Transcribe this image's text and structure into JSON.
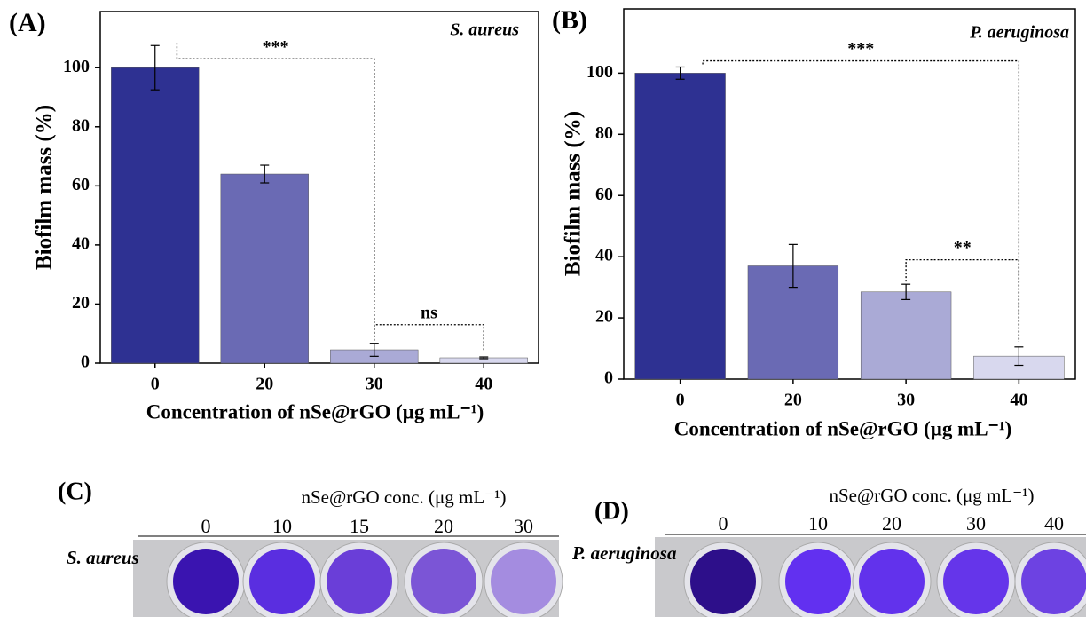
{
  "chart_data": [
    {
      "type": "bar",
      "title": "(A)",
      "annotations": [
        "S. aureus",
        "***",
        "ns"
      ],
      "x_label": "Concentration of nSe@rGO (μg mL⁻¹)",
      "y_label": "Biofilm mass (%)",
      "categories": [
        "0",
        "20",
        "30",
        "40"
      ],
      "values": [
        100,
        64,
        4.5,
        1.8
      ],
      "errors": [
        7.5,
        3,
        2.2,
        0.3
      ],
      "colors": [
        "#2e3192",
        "#6a6ab4",
        "#aaaad6",
        "#d8d8ee"
      ],
      "ylim": [
        0,
        119
      ],
      "yticks": [
        0,
        20,
        40,
        60,
        80,
        100
      ]
    },
    {
      "type": "bar",
      "title": "(B)",
      "annotations": [
        "P. aeruginosa",
        "***",
        "**"
      ],
      "x_label": "Concentration of nSe@rGO (μg mL⁻¹)",
      "y_label": "Biofilm mass (%)",
      "categories": [
        "0",
        "20",
        "30",
        "40"
      ],
      "values": [
        100,
        37,
        28.5,
        7.5
      ],
      "errors": [
        2,
        7,
        2.5,
        3
      ],
      "colors": [
        "#2e3192",
        "#6a6ab4",
        "#aaaad6",
        "#d8d8ee"
      ],
      "ylim": [
        0,
        121
      ],
      "yticks": [
        0,
        20,
        40,
        60,
        80,
        100
      ]
    }
  ],
  "panels": [
    {
      "label": "(C)",
      "header": "nSe@rGO conc. (μg mL⁻¹)",
      "concentrations": [
        "0",
        "10",
        "15",
        "20",
        "30"
      ],
      "organism": "S. aureus"
    },
    {
      "label": "(D)",
      "header": "nSe@rGO conc. (μg mL⁻¹)",
      "concentrations": [
        "0",
        "10",
        "20",
        "30",
        "40"
      ],
      "organism": "P. aeruginosa"
    }
  ]
}
